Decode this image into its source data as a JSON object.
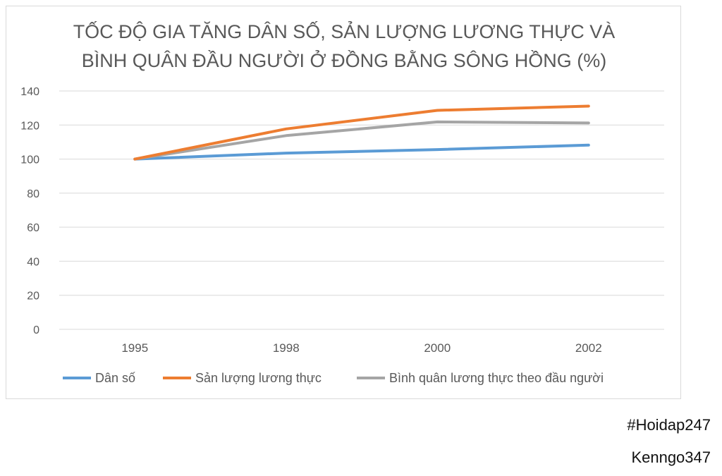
{
  "chart_data": {
    "type": "line",
    "title_lines": [
      "TỐC ĐỘ GIA TĂNG DÂN SỐ, SẢN LƯỢNG LƯƠNG THỰC VÀ",
      "BÌNH QUÂN ĐẦU NGƯỜI Ở ĐỒNG BẰNG SÔNG HỒNG (%)"
    ],
    "categories": [
      "1995",
      "1998",
      "2000",
      "2002"
    ],
    "ylim": [
      0,
      140
    ],
    "yticks": [
      0,
      20,
      40,
      60,
      80,
      100,
      120,
      140
    ],
    "grid": true,
    "legend_position": "bottom",
    "series": [
      {
        "name": "Dân số",
        "color": "#5b9bd5",
        "values": [
          100,
          103.5,
          105.6,
          108.2
        ]
      },
      {
        "name": "Sản lượng lương thực",
        "color": "#ed7d31",
        "values": [
          100,
          117.7,
          128.6,
          131.1
        ]
      },
      {
        "name": "Bình quân lương thực theo đầu người",
        "color": "#a5a5a5",
        "values": [
          100,
          113.8,
          121.8,
          121.2
        ]
      }
    ]
  },
  "watermark": {
    "hashtag": "#Hoidap247",
    "author": "Kenngo347"
  }
}
